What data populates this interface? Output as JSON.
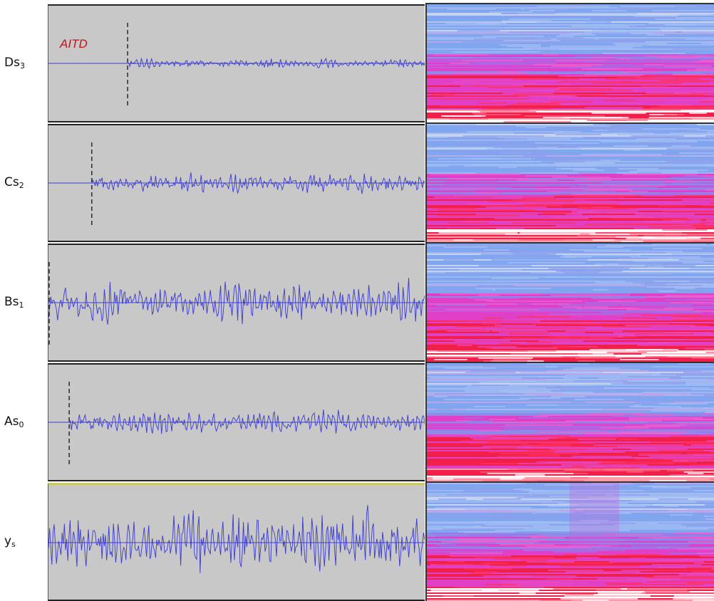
{
  "annotation": {
    "aitd_label": "AITD"
  },
  "colors": {
    "panel_bg": "#c8c8c8",
    "baseline": "#5a5ad8",
    "waveform": "#3a3ad0",
    "marker": "#111111",
    "annotation": "#c0141c",
    "spectrogram_low": "#7fa6ef",
    "spectrogram_mid": "#e040c8",
    "spectrogram_high": "#f0204a",
    "spectrogram_peak": "#ffffff"
  },
  "rows": [
    {
      "id": "ds3",
      "label_main": "Ds",
      "label_sub": "3",
      "amplitude": 0.12,
      "onset": 0.21,
      "highlight": false
    },
    {
      "id": "cs2",
      "label_main": "Cs",
      "label_sub": "2",
      "amplitude": 0.28,
      "onset": 0.115,
      "highlight": false
    },
    {
      "id": "bs1",
      "label_main": "Bs",
      "label_sub": "1",
      "amplitude": 0.55,
      "onset": 0.0,
      "highlight": false
    },
    {
      "id": "as0",
      "label_main": "As",
      "label_sub": "0",
      "amplitude": 0.32,
      "onset": 0.055,
      "highlight": false
    },
    {
      "id": "ys",
      "label_main": "y",
      "label_sub": "s",
      "amplitude": 0.85,
      "onset": null,
      "highlight": true
    }
  ]
}
